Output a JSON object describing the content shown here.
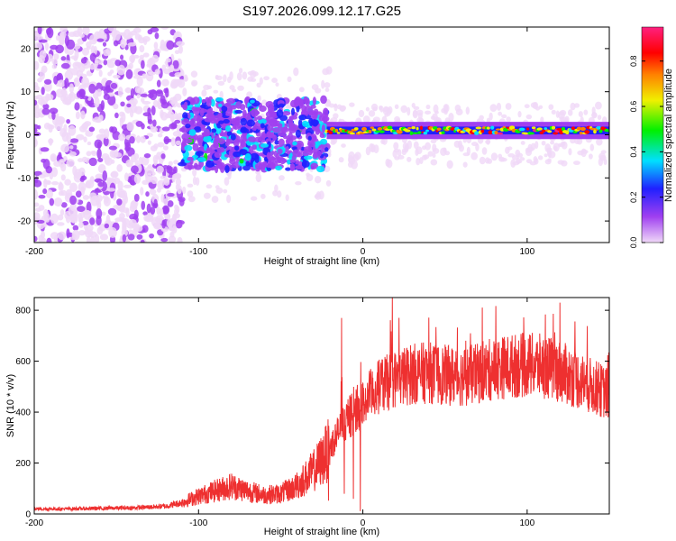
{
  "title": "S197.2026.099.12.17.G25",
  "chart_data": [
    {
      "type": "heatmap",
      "xlabel": "Height of straight line (km)",
      "ylabel": "Frequency (Hz)",
      "xlim": [
        -200,
        150
      ],
      "ylim": [
        -25,
        25
      ],
      "xticks": [
        -200,
        -100,
        0,
        100
      ],
      "yticks": [
        -20,
        -10,
        0,
        10,
        20
      ],
      "colorbar": {
        "label": "Normalized spectral amplitude",
        "range": [
          0.0,
          0.95
        ],
        "ticks": [
          0.0,
          0.2,
          0.4,
          0.6,
          0.8
        ],
        "tick_labels": [
          "0.0",
          "0.2",
          "0.4",
          "0.6",
          "0.8"
        ],
        "colormap": [
          "#f0d8f8",
          "#a040f0",
          "#2020ff",
          "#00e0ff",
          "#00f000",
          "#f0f000",
          "#ff8000",
          "#ff0000",
          "#ff2080"
        ]
      },
      "regions": [
        {
          "name": "scattered noise",
          "x_range": [
            -200,
            -110
          ],
          "freq_range": [
            -25,
            25
          ],
          "amplitude": "0.0-0.15"
        },
        {
          "name": "noisy transition",
          "x_range": [
            -110,
            -22
          ],
          "freq_range": [
            -8,
            10
          ],
          "amplitude": "0.1-0.4"
        },
        {
          "name": "steady carrier",
          "x_range": [
            -22,
            150
          ],
          "freq_center": 1,
          "freq_width": 2,
          "amplitude": "0.3-0.95"
        }
      ]
    },
    {
      "type": "line",
      "xlabel": "Height of straight line (km)",
      "ylabel": "SNR (10 * v/v)",
      "xlim": [
        -200,
        150
      ],
      "ylim": [
        0,
        850
      ],
      "xticks": [
        -200,
        -100,
        0,
        100
      ],
      "yticks": [
        0,
        200,
        400,
        600,
        800
      ],
      "color": "#ee3030",
      "series": [
        {
          "name": "SNR",
          "x": [
            -200,
            -180,
            -160,
            -140,
            -120,
            -110,
            -100,
            -90,
            -80,
            -70,
            -60,
            -50,
            -40,
            -30,
            -25,
            -20,
            -15,
            -10,
            -5,
            0,
            5,
            10,
            20,
            30,
            40,
            50,
            60,
            70,
            80,
            90,
            100,
            110,
            120,
            130,
            140,
            150
          ],
          "values": [
            20,
            20,
            22,
            24,
            30,
            45,
            70,
            90,
            110,
            90,
            75,
            80,
            110,
            170,
            210,
            260,
            320,
            370,
            400,
            430,
            470,
            500,
            530,
            550,
            555,
            545,
            540,
            550,
            570,
            580,
            585,
            580,
            560,
            530,
            500,
            470
          ],
          "spikes": [
            {
              "x": -13,
              "value": 770
            },
            {
              "x": 18,
              "value": 850
            },
            {
              "x": 120,
              "value": 830
            }
          ]
        }
      ]
    }
  ]
}
